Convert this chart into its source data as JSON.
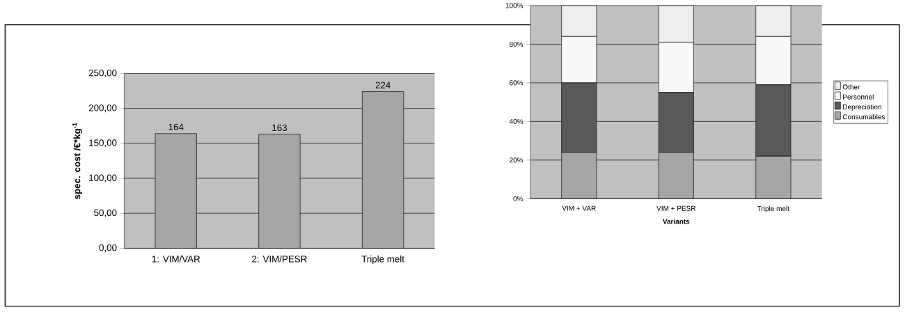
{
  "chart_data": [
    {
      "type": "bar",
      "ylabel": "spec. cost /€*kg$^{-1}$",
      "categories": [
        "1: VIM/VAR",
        "2: VIM/PESR",
        "Triple melt"
      ],
      "values": [
        164,
        163,
        224
      ],
      "color": "#a6a6a6",
      "data_labels": true,
      "grid": "y",
      "legend": false,
      "ylim": [
        0,
        250
      ],
      "yticks": [
        {
          "value": 0,
          "label": "0,00"
        },
        {
          "value": 50,
          "label": "50,00"
        },
        {
          "value": 100,
          "label": "100,00"
        },
        {
          "value": 150,
          "label": "150,00"
        },
        {
          "value": 200,
          "label": "200,00"
        },
        {
          "value": 250,
          "label": "250,00"
        }
      ]
    },
    {
      "type": "bar",
      "stacked": true,
      "xlabel": "Variants",
      "categories": [
        "VIM + VAR",
        "VIM + PESR",
        "Triple melt"
      ],
      "grid": "y",
      "legend": "right",
      "series": [
        {
          "name": "Consumables",
          "color": "#a6a6a6",
          "values": [
            24,
            24,
            22
          ]
        },
        {
          "name": "Depreciation",
          "color": "#595959",
          "values": [
            36,
            31,
            37
          ]
        },
        {
          "name": "Personnel",
          "color": "#f8f8f8",
          "values": [
            24,
            26,
            25
          ]
        },
        {
          "name": "Other",
          "color": "#eeeeee",
          "values": [
            16,
            19,
            16
          ]
        }
      ],
      "ylim": [
        0,
        100
      ],
      "yticks": [
        {
          "value": 0,
          "label": "0%"
        },
        {
          "value": 20,
          "label": "20%"
        },
        {
          "value": 40,
          "label": "40%"
        },
        {
          "value": 60,
          "label": "60%"
        },
        {
          "value": 80,
          "label": "80%"
        },
        {
          "value": 100,
          "label": "100%"
        }
      ]
    }
  ]
}
